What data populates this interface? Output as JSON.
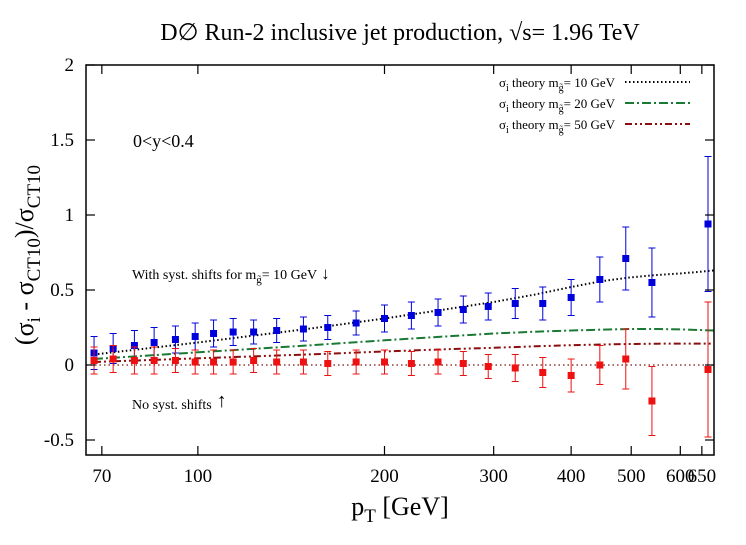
{
  "chart_data": {
    "type": "scatter",
    "title": "D∅ Run-2 inclusive jet production, √s= 1.96 TeV",
    "xlabel": {
      "main": "p",
      "sub": "T",
      "tail": " [GeV]"
    },
    "ylabel": {
      "p1": "(σ",
      "s1": "i",
      "p2": " - σ",
      "s2": "CT10",
      "p3": ")/σ",
      "s3": "CT10"
    },
    "x_scale": "log",
    "xlim": [
      66,
      680
    ],
    "ylim": [
      -0.6,
      2.0
    ],
    "x_ticks": [
      70,
      100,
      200,
      300,
      400,
      500,
      600,
      650
    ],
    "x_tick_labels": [
      "70",
      "100",
      "200",
      "300",
      "400",
      "500",
      "600",
      "650"
    ],
    "y_ticks": [
      -0.5,
      0,
      0.5,
      1,
      1.5,
      2
    ],
    "y_tick_labels": [
      "-0.5",
      "0",
      "0.5",
      "1",
      "1.5",
      "2"
    ],
    "region_label": "0<y<0.4",
    "annotations": {
      "with_shifts": {
        "text": "With syst. shifts for m",
        "sub": "g̃",
        "tail": "= 10 GeV",
        "arrow": "↓"
      },
      "no_shifts": {
        "text": "No syst. shifts",
        "arrow": "↑"
      }
    },
    "legend_position": "top-right",
    "legend": [
      {
        "pre": "σ",
        "sub1": "i",
        "mid": " theory m",
        "sub2": "g̃",
        "post": "= 10 GeV",
        "color": "#000000",
        "dash": "1.5,2.5"
      },
      {
        "pre": "σ",
        "sub1": "i",
        "mid": " theory m",
        "sub2": "g̃",
        "post": "= 20 GeV",
        "color": "#1a7a34",
        "dash": "9,3,2,3"
      },
      {
        "pre": "σ",
        "sub1": "i",
        "mid": " theory m",
        "sub2": "g̃",
        "post": "= 50 GeV",
        "color": "#8b0f0f",
        "dash": "7,3,2,3,2,3"
      }
    ],
    "reference_line": {
      "y": 0,
      "color": "#7a1010"
    },
    "theory_curves": [
      {
        "color": "#000000",
        "dash": "1.5,2.5",
        "points": [
          [
            68,
            0.07
          ],
          [
            100,
            0.15
          ],
          [
            150,
            0.24
          ],
          [
            200,
            0.31
          ],
          [
            250,
            0.37
          ],
          [
            300,
            0.42
          ],
          [
            350,
            0.47
          ],
          [
            400,
            0.52
          ],
          [
            450,
            0.56
          ],
          [
            500,
            0.585
          ],
          [
            550,
            0.6
          ],
          [
            600,
            0.61
          ],
          [
            680,
            0.63
          ]
        ]
      },
      {
        "color": "#1a7a34",
        "dash": "9,3,2,3",
        "points": [
          [
            68,
            0.04
          ],
          [
            100,
            0.085
          ],
          [
            150,
            0.13
          ],
          [
            200,
            0.165
          ],
          [
            250,
            0.19
          ],
          [
            300,
            0.21
          ],
          [
            350,
            0.222
          ],
          [
            400,
            0.23
          ],
          [
            450,
            0.236
          ],
          [
            500,
            0.24
          ],
          [
            550,
            0.24
          ],
          [
            600,
            0.237
          ],
          [
            680,
            0.23
          ]
        ]
      },
      {
        "color": "#8b0f0f",
        "dash": "7,3,2,3,2,3",
        "points": [
          [
            68,
            0.02
          ],
          [
            100,
            0.045
          ],
          [
            150,
            0.07
          ],
          [
            200,
            0.09
          ],
          [
            250,
            0.105
          ],
          [
            300,
            0.115
          ],
          [
            350,
            0.125
          ],
          [
            400,
            0.132
          ],
          [
            450,
            0.137
          ],
          [
            500,
            0.14
          ],
          [
            550,
            0.142
          ],
          [
            600,
            0.143
          ],
          [
            680,
            0.143
          ]
        ]
      }
    ],
    "series": [
      {
        "color": "#0000dd",
        "points": [
          {
            "x": 68,
            "y": 0.08,
            "err": 0.11
          },
          {
            "x": 73,
            "y": 0.11,
            "err": 0.1
          },
          {
            "x": 79,
            "y": 0.13,
            "err": 0.1
          },
          {
            "x": 85,
            "y": 0.15,
            "err": 0.1
          },
          {
            "x": 92,
            "y": 0.17,
            "err": 0.09
          },
          {
            "x": 99,
            "y": 0.19,
            "err": 0.09
          },
          {
            "x": 106,
            "y": 0.21,
            "err": 0.09
          },
          {
            "x": 114,
            "y": 0.22,
            "err": 0.09
          },
          {
            "x": 123,
            "y": 0.22,
            "err": 0.08
          },
          {
            "x": 134,
            "y": 0.23,
            "err": 0.08
          },
          {
            "x": 148,
            "y": 0.24,
            "err": 0.08
          },
          {
            "x": 162,
            "y": 0.25,
            "err": 0.08
          },
          {
            "x": 180,
            "y": 0.28,
            "err": 0.08
          },
          {
            "x": 200,
            "y": 0.31,
            "err": 0.09
          },
          {
            "x": 221,
            "y": 0.33,
            "err": 0.09
          },
          {
            "x": 244,
            "y": 0.35,
            "err": 0.09
          },
          {
            "x": 268,
            "y": 0.37,
            "err": 0.09
          },
          {
            "x": 294,
            "y": 0.39,
            "err": 0.09
          },
          {
            "x": 325,
            "y": 0.41,
            "err": 0.1
          },
          {
            "x": 360,
            "y": 0.41,
            "err": 0.11
          },
          {
            "x": 400,
            "y": 0.45,
            "err": 0.12
          },
          {
            "x": 445,
            "y": 0.57,
            "err": 0.15
          },
          {
            "x": 490,
            "y": 0.71,
            "err": 0.21
          },
          {
            "x": 540,
            "y": 0.55,
            "err": 0.23
          },
          {
            "x": 665,
            "y": 0.94,
            "err": 0.45
          }
        ]
      },
      {
        "color": "#ee1111",
        "points": [
          {
            "x": 68,
            "y": 0.03,
            "err": 0.09
          },
          {
            "x": 73,
            "y": 0.04,
            "err": 0.09
          },
          {
            "x": 79,
            "y": 0.03,
            "err": 0.09
          },
          {
            "x": 85,
            "y": 0.03,
            "err": 0.09
          },
          {
            "x": 92,
            "y": 0.03,
            "err": 0.08
          },
          {
            "x": 99,
            "y": 0.02,
            "err": 0.08
          },
          {
            "x": 106,
            "y": 0.02,
            "err": 0.08
          },
          {
            "x": 114,
            "y": 0.02,
            "err": 0.08
          },
          {
            "x": 123,
            "y": 0.03,
            "err": 0.08
          },
          {
            "x": 134,
            "y": 0.02,
            "err": 0.08
          },
          {
            "x": 148,
            "y": 0.02,
            "err": 0.08
          },
          {
            "x": 162,
            "y": 0.01,
            "err": 0.08
          },
          {
            "x": 180,
            "y": 0.02,
            "err": 0.08
          },
          {
            "x": 200,
            "y": 0.02,
            "err": 0.08
          },
          {
            "x": 221,
            "y": 0.01,
            "err": 0.08
          },
          {
            "x": 244,
            "y": 0.02,
            "err": 0.08
          },
          {
            "x": 268,
            "y": 0.01,
            "err": 0.08
          },
          {
            "x": 294,
            "y": -0.01,
            "err": 0.08
          },
          {
            "x": 325,
            "y": -0.02,
            "err": 0.09
          },
          {
            "x": 360,
            "y": -0.05,
            "err": 0.1
          },
          {
            "x": 400,
            "y": -0.07,
            "err": 0.11
          },
          {
            "x": 445,
            "y": 0.0,
            "err": 0.13
          },
          {
            "x": 490,
            "y": 0.04,
            "err": 0.2
          },
          {
            "x": 540,
            "y": -0.24,
            "err": 0.23
          },
          {
            "x": 665,
            "y": -0.03,
            "err": 0.45
          }
        ]
      }
    ]
  }
}
